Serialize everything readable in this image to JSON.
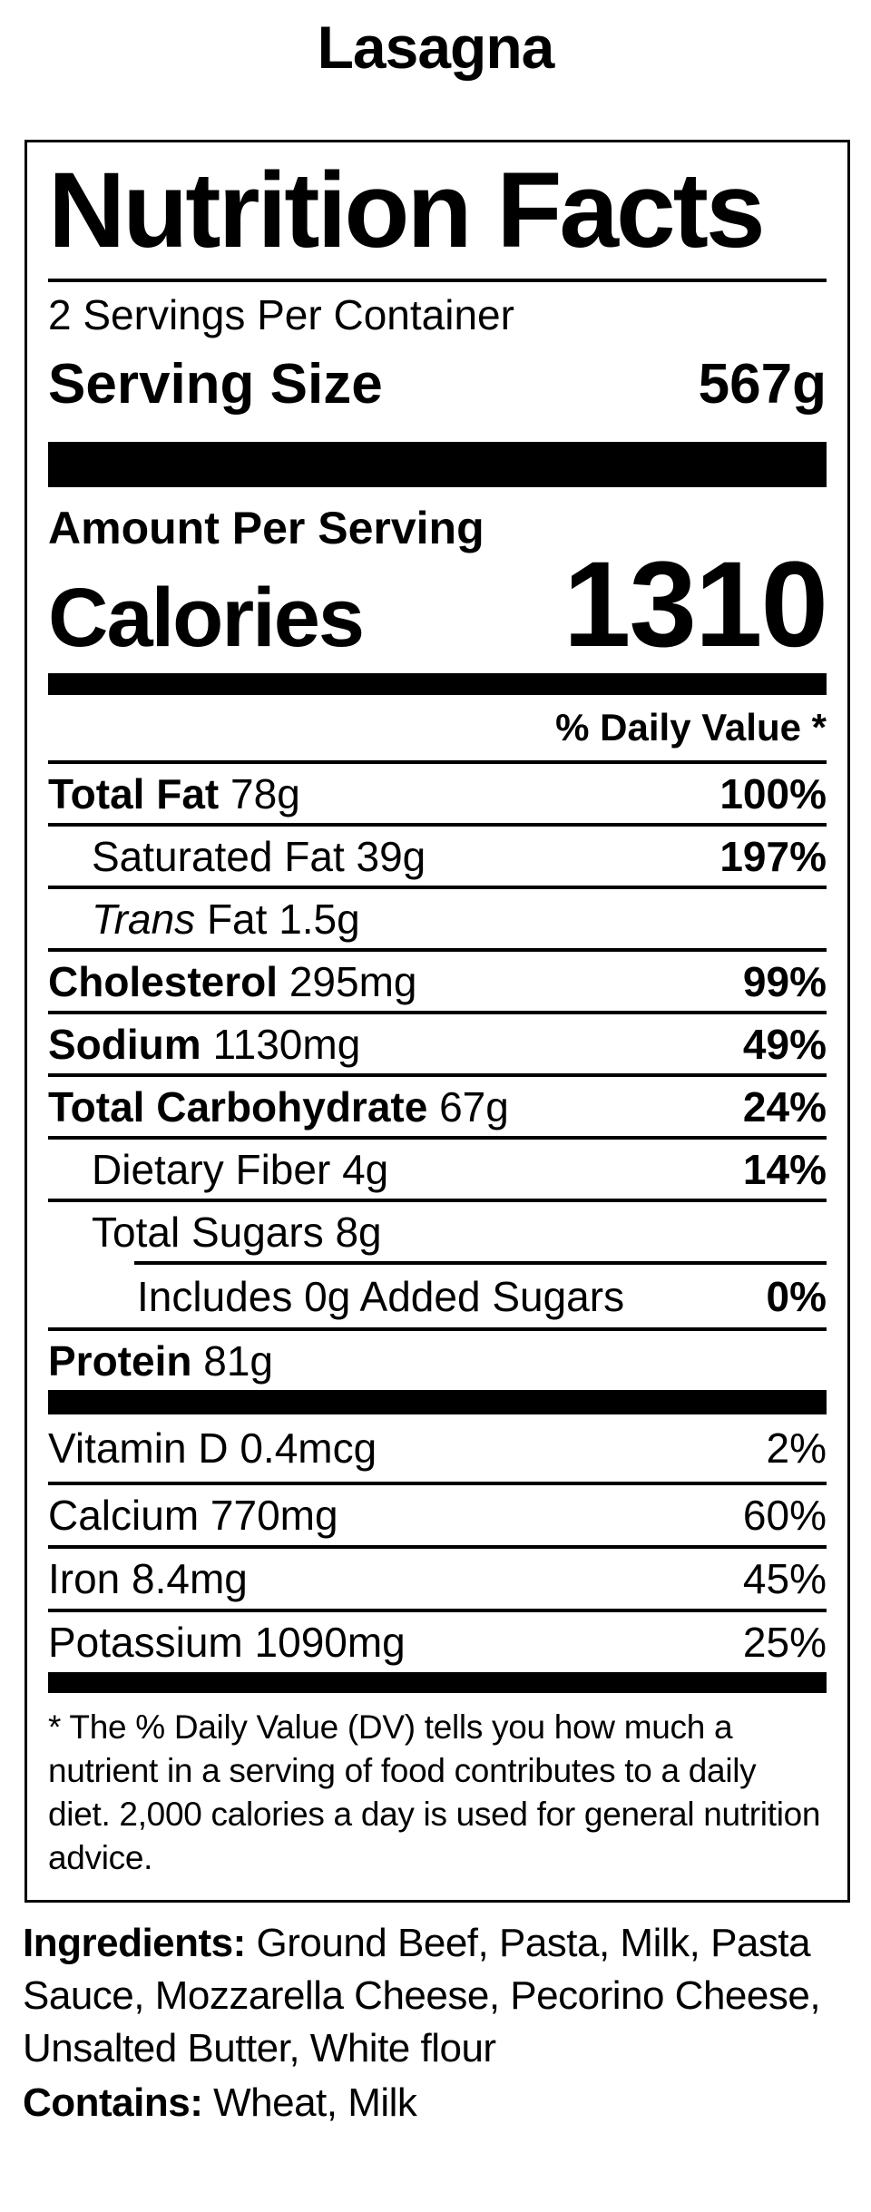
{
  "colors": {
    "text": "#000000",
    "background": "#ffffff",
    "divider": "#000000"
  },
  "page_title": "Lasagna",
  "nutrition_facts": {
    "heading": "Nutrition Facts",
    "servings_per_container": "2 Servings Per Container",
    "serving_size": {
      "label": "Serving Size",
      "value": "567g"
    },
    "amount_per_serving": "Amount Per Serving",
    "calories": {
      "label": "Calories",
      "value": "1310"
    },
    "daily_value_header": "% Daily Value *",
    "nutrients": [
      {
        "bold": "Total Fat",
        "regular": " 78g",
        "dv": "100%",
        "dv_bold": true,
        "indent": 0
      },
      {
        "regular": "Saturated Fat 39g",
        "dv": "197%",
        "dv_bold": true,
        "indent": 1
      },
      {
        "italic": "Trans",
        "regular": " Fat 1.5g",
        "dv": "",
        "indent": 1
      },
      {
        "bold": "Cholesterol",
        "regular": " 295mg",
        "dv": "99%",
        "dv_bold": true,
        "indent": 0
      },
      {
        "bold": "Sodium",
        "regular": " 1130mg",
        "dv": "49%",
        "dv_bold": true,
        "indent": 0
      },
      {
        "bold": "Total Carbohydrate",
        "regular": " 67g",
        "dv": "24%",
        "dv_bold": true,
        "indent": 0
      },
      {
        "regular": "Dietary Fiber 4g",
        "dv": "14%",
        "dv_bold": true,
        "indent": 1
      },
      {
        "regular": "Total Sugars 8g",
        "dv": "",
        "indent": 1
      },
      {
        "regular": "Includes 0g Added Sugars",
        "dv": "0%",
        "dv_bold": true,
        "indent": 2,
        "sub_divider": true
      },
      {
        "bold": "Protein",
        "regular": " 81g",
        "dv": "",
        "indent": 0
      }
    ],
    "vitamins": [
      {
        "text": "Vitamin D 0.4mcg",
        "dv": "2%"
      },
      {
        "text": "Calcium 770mg",
        "dv": "60%"
      },
      {
        "text": "Iron 8.4mg",
        "dv": "45%"
      },
      {
        "text": "Potassium 1090mg",
        "dv": "25%"
      }
    ],
    "footnote": "* The % Daily Value (DV) tells you how much a nutrient in a serving of food contributes to a daily diet. 2,000 calories a day is used for general nutrition advice."
  },
  "ingredients": {
    "label": "Ingredients:",
    "items": " Ground Beef, Pasta, Milk, Pasta Sauce, Mozzarella Cheese, Pecorino Cheese, Unsalted Butter, White flour"
  },
  "contains": {
    "label": "Contains:",
    "items": " Wheat, Milk"
  }
}
